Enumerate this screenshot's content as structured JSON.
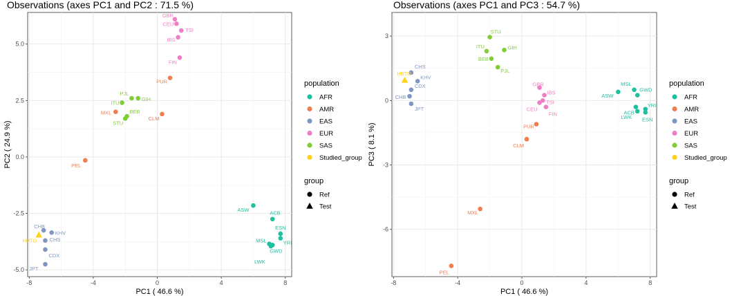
{
  "colors": {
    "AFR": "#1fbf9f",
    "AMR": "#f07d4e",
    "EAS": "#8096c2",
    "EUR": "#f07ec4",
    "SAS": "#7fce36",
    "Studied_group": "#ffd11a"
  },
  "legend": {
    "population_title": "population",
    "population_items": [
      "AFR",
      "AMR",
      "EAS",
      "EUR",
      "SAS",
      "Studied_group"
    ],
    "group_title": "group",
    "group_items": [
      {
        "label": "Ref",
        "shape": "circle"
      },
      {
        "label": "Test",
        "shape": "triangle"
      }
    ]
  },
  "chart_data": [
    {
      "type": "scatter",
      "title": "Observations (axes PC1 and PC2 :  71.5 %)",
      "xlabel": "PC1 ( 46.6 %)",
      "ylabel": "PC2 ( 24.9 %)",
      "xlim": [
        -8.1,
        8.4
      ],
      "ylim": [
        -5.3,
        6.4
      ],
      "xticks": [
        -8,
        -4,
        0,
        4,
        8
      ],
      "yticks": [
        -5.0,
        -2.5,
        0.0,
        2.5,
        5.0
      ],
      "ytick_labels": [
        "-5.0",
        "-2.5",
        "0.0",
        "2.5",
        "5.0"
      ],
      "points": [
        {
          "label": "GBR",
          "pop": "EUR",
          "group": "Ref",
          "x": 1.1,
          "y": 6.1
        },
        {
          "label": "CEU",
          "pop": "EUR",
          "group": "Ref",
          "x": 1.2,
          "y": 5.9
        },
        {
          "label": "TSI",
          "pop": "EUR",
          "group": "Ref",
          "x": 1.5,
          "y": 5.6
        },
        {
          "label": "IBS",
          "pop": "EUR",
          "group": "Ref",
          "x": 1.3,
          "y": 5.3
        },
        {
          "label": "FIN",
          "pop": "EUR",
          "group": "Ref",
          "x": 1.4,
          "y": 4.4
        },
        {
          "label": "PUR",
          "pop": "AMR",
          "group": "Ref",
          "x": 0.8,
          "y": 3.5
        },
        {
          "label": "CLM",
          "pop": "AMR",
          "group": "Ref",
          "x": 0.3,
          "y": 1.9
        },
        {
          "label": "MXL",
          "pop": "AMR",
          "group": "Ref",
          "x": -2.6,
          "y": 2.0
        },
        {
          "label": "PEL",
          "pop": "AMR",
          "group": "Ref",
          "x": -4.5,
          "y": -0.15
        },
        {
          "label": "PJL",
          "pop": "SAS",
          "group": "Ref",
          "x": -1.6,
          "y": 2.6
        },
        {
          "label": "GIH",
          "pop": "SAS",
          "group": "Ref",
          "x": -1.2,
          "y": 2.6
        },
        {
          "label": "ITU",
          "pop": "SAS",
          "group": "Ref",
          "x": -2.2,
          "y": 2.4
        },
        {
          "label": "BEB",
          "pop": "SAS",
          "group": "Ref",
          "x": -1.9,
          "y": 1.8
        },
        {
          "label": "STU",
          "pop": "SAS",
          "group": "Ref",
          "x": -2.0,
          "y": 1.7
        },
        {
          "label": "ASW",
          "pop": "AFR",
          "group": "Ref",
          "x": 6.0,
          "y": -2.15
        },
        {
          "label": "ACB",
          "pop": "AFR",
          "group": "Ref",
          "x": 7.2,
          "y": -2.75
        },
        {
          "label": "ESN",
          "pop": "AFR",
          "group": "Ref",
          "x": 7.7,
          "y": -3.4
        },
        {
          "label": "YRI",
          "pop": "AFR",
          "group": "Ref",
          "x": 7.7,
          "y": -3.6
        },
        {
          "label": "MSL",
          "pop": "AFR",
          "group": "Ref",
          "x": 7.0,
          "y": -3.85
        },
        {
          "label": "GWD",
          "pop": "AFR",
          "group": "Ref",
          "x": 7.2,
          "y": -3.9
        },
        {
          "label": "LWK",
          "pop": "AFR",
          "group": "Ref",
          "x": 7.1,
          "y": -3.95
        },
        {
          "label": "CHB",
          "pop": "EAS",
          "group": "Ref",
          "x": -7.1,
          "y": -3.25
        },
        {
          "label": "KHV",
          "pop": "EAS",
          "group": "Ref",
          "x": -6.6,
          "y": -3.35
        },
        {
          "label": "CHS",
          "pop": "EAS",
          "group": "Ref",
          "x": -7.0,
          "y": -3.7
        },
        {
          "label": "CDX",
          "pop": "EAS",
          "group": "Ref",
          "x": -7.0,
          "y": -4.1
        },
        {
          "label": "JPT",
          "pop": "EAS",
          "group": "Ref",
          "x": -7.0,
          "y": -4.75
        },
        {
          "label": "HBTO",
          "pop": "Studied_group",
          "group": "Test",
          "x": -7.4,
          "y": -3.45
        }
      ]
    },
    {
      "type": "scatter",
      "title": "Observations (axes PC1 and PC3 :  54.7 %)",
      "xlabel": "PC1 ( 46.6 %)",
      "ylabel": "PC3 ( 8.1 %)",
      "xlim": [
        -8.1,
        8.4
      ],
      "ylim": [
        -8.2,
        4.1
      ],
      "xticks": [
        -8,
        -4,
        0,
        4,
        8
      ],
      "yticks": [
        -6,
        -3,
        0,
        3
      ],
      "ytick_labels": [
        "-6",
        "-3",
        "0",
        "3"
      ],
      "points": [
        {
          "label": "STU",
          "pop": "SAS",
          "group": "Ref",
          "x": -2.0,
          "y": 2.95
        },
        {
          "label": "ITU",
          "pop": "SAS",
          "group": "Ref",
          "x": -2.2,
          "y": 2.3
        },
        {
          "label": "GIH",
          "pop": "SAS",
          "group": "Ref",
          "x": -1.1,
          "y": 2.35
        },
        {
          "label": "BEB",
          "pop": "SAS",
          "group": "Ref",
          "x": -1.9,
          "y": 1.95
        },
        {
          "label": "PJL",
          "pop": "SAS",
          "group": "Ref",
          "x": -1.5,
          "y": 1.55
        },
        {
          "label": "CHS",
          "pop": "EAS",
          "group": "Ref",
          "x": -6.9,
          "y": 1.3
        },
        {
          "label": "KHV",
          "pop": "EAS",
          "group": "Ref",
          "x": -6.5,
          "y": 0.9
        },
        {
          "label": "CDX",
          "pop": "EAS",
          "group": "Ref",
          "x": -6.9,
          "y": 0.5
        },
        {
          "label": "CHB",
          "pop": "EAS",
          "group": "Ref",
          "x": -7.0,
          "y": 0.2
        },
        {
          "label": "JPT",
          "pop": "EAS",
          "group": "Ref",
          "x": -6.9,
          "y": -0.15
        },
        {
          "label": "HBTO",
          "pop": "Studied_group",
          "group": "Test",
          "x": -7.3,
          "y": 0.95
        },
        {
          "label": "GBR",
          "pop": "EUR",
          "group": "Ref",
          "x": 1.1,
          "y": 0.6
        },
        {
          "label": "IBS",
          "pop": "EUR",
          "group": "Ref",
          "x": 1.4,
          "y": 0.25
        },
        {
          "label": "TSI",
          "pop": "EUR",
          "group": "Ref",
          "x": 1.3,
          "y": 0.0
        },
        {
          "label": "CEU",
          "pop": "EUR",
          "group": "Ref",
          "x": 1.1,
          "y": -0.1
        },
        {
          "label": "FIN",
          "pop": "EUR",
          "group": "Ref",
          "x": 1.5,
          "y": -0.3
        },
        {
          "label": "PUR",
          "pop": "AMR",
          "group": "Ref",
          "x": 0.9,
          "y": -1.1
        },
        {
          "label": "CLM",
          "pop": "AMR",
          "group": "Ref",
          "x": 0.3,
          "y": -1.8
        },
        {
          "label": "MXL",
          "pop": "AMR",
          "group": "Ref",
          "x": -2.6,
          "y": -5.05
        },
        {
          "label": "PEL",
          "pop": "AMR",
          "group": "Ref",
          "x": -4.4,
          "y": -7.7
        },
        {
          "label": "ASW",
          "pop": "AFR",
          "group": "Ref",
          "x": 6.0,
          "y": 0.4
        },
        {
          "label": "MSL",
          "pop": "AFR",
          "group": "Ref",
          "x": 7.0,
          "y": 0.5
        },
        {
          "label": "GWD",
          "pop": "AFR",
          "group": "Ref",
          "x": 7.2,
          "y": 0.25
        },
        {
          "label": "ACB",
          "pop": "AFR",
          "group": "Ref",
          "x": 7.1,
          "y": -0.3
        },
        {
          "label": "YRI",
          "pop": "AFR",
          "group": "Ref",
          "x": 7.7,
          "y": -0.4
        },
        {
          "label": "LWK",
          "pop": "AFR",
          "group": "Ref",
          "x": 7.2,
          "y": -0.5
        },
        {
          "label": "ESN",
          "pop": "AFR",
          "group": "Ref",
          "x": 7.7,
          "y": -0.55
        }
      ]
    }
  ]
}
